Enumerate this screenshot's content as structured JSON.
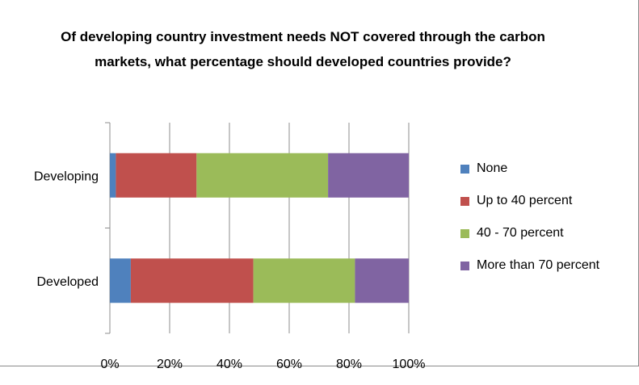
{
  "chart_data": {
    "type": "bar",
    "orientation": "horizontal",
    "stacked": "percent",
    "title": "Of developing country investment needs NOT covered through the carbon markets, what percentage should developed countries provide?",
    "categories": [
      "Developed",
      "Developing"
    ],
    "series": [
      {
        "name": "None",
        "color": "#4f81bd",
        "values": [
          7,
          2
        ]
      },
      {
        "name": "Up to 40 percent",
        "color": "#c0504d",
        "values": [
          41,
          27
        ]
      },
      {
        "name": "40 - 70 percent",
        "color": "#9bbb59",
        "values": [
          34,
          44
        ]
      },
      {
        "name": "More than 70 percent",
        "color": "#8064a2",
        "values": [
          18,
          27
        ]
      }
    ],
    "xlim": [
      0,
      100
    ],
    "x_ticks": [
      "0%",
      "20%",
      "40%",
      "60%",
      "80%",
      "100%"
    ],
    "grid": true,
    "legend_position": "right"
  }
}
